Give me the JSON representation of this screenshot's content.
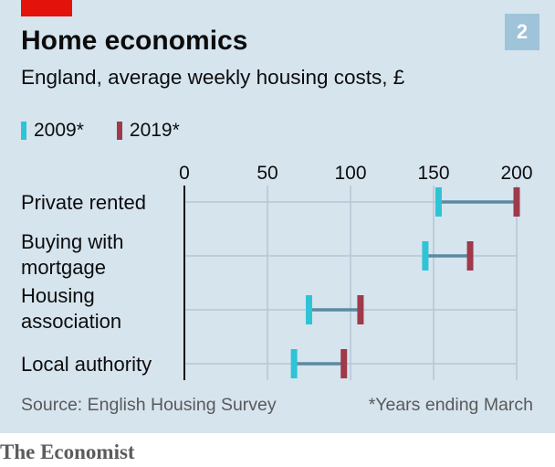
{
  "header": {
    "title": "Home economics",
    "subtitle": "England, average weekly housing costs, £",
    "chart_number": "2"
  },
  "legend": [
    {
      "label": "2009*",
      "color": "#2ec4d6"
    },
    {
      "label": "2019*",
      "color": "#9e3a4a"
    }
  ],
  "footer": {
    "source": "Source: English Housing Survey",
    "note": "*Years ending March",
    "brand": "The Economist"
  },
  "colors": {
    "background": "#d6e4ee",
    "accent_red": "#e3120b",
    "connector": "#5b8aa0",
    "gridline": "#b4c7d3",
    "zero_axis": "#111111"
  },
  "chart_data": {
    "type": "dumbbell",
    "title": "Home economics",
    "subtitle": "England, average weekly housing costs, £",
    "xlim": [
      0,
      200
    ],
    "xticks": [
      0,
      50,
      100,
      150,
      200
    ],
    "xtick_labels": [
      "0",
      "50",
      "100",
      "150",
      "200"
    ],
    "grid": true,
    "legend_position": "top-left",
    "categories": [
      "Private rented",
      "Buying with mortgage",
      "Housing association",
      "Local authority"
    ],
    "category_label_lines": [
      [
        "Private rented"
      ],
      [
        "Buying with",
        "mortgage"
      ],
      [
        "Housing",
        "association"
      ],
      [
        "Local authority"
      ]
    ],
    "series": [
      {
        "name": "2009*",
        "values": [
          153,
          145,
          75,
          66
        ]
      },
      {
        "name": "2019*",
        "values": [
          200,
          172,
          106,
          96
        ]
      }
    ]
  }
}
